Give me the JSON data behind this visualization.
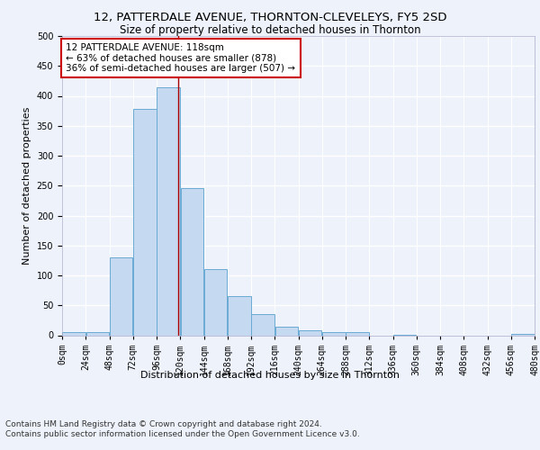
{
  "title1": "12, PATTERDALE AVENUE, THORNTON-CLEVELEYS, FY5 2SD",
  "title2": "Size of property relative to detached houses in Thornton",
  "xlabel": "Distribution of detached houses by size in Thornton",
  "ylabel": "Number of detached properties",
  "bin_edges": [
    0,
    24,
    48,
    72,
    96,
    120,
    144,
    168,
    192,
    216,
    240,
    264,
    288,
    312,
    336,
    360,
    384,
    408,
    432,
    456,
    480
  ],
  "bar_heights": [
    5,
    6,
    130,
    378,
    415,
    246,
    111,
    65,
    35,
    15,
    9,
    5,
    6,
    0,
    1,
    0,
    0,
    0,
    0,
    3
  ],
  "bar_color": "#c5d9f0",
  "bar_edge_color": "#6aaad4",
  "property_size": 118,
  "vline_color": "#aa0000",
  "annotation_text": "12 PATTERDALE AVENUE: 118sqm\n← 63% of detached houses are smaller (878)\n36% of semi-detached houses are larger (507) →",
  "annotation_box_color": "#ffffff",
  "annotation_box_edge_color": "#cc0000",
  "ylim": [
    0,
    500
  ],
  "yticks": [
    0,
    50,
    100,
    150,
    200,
    250,
    300,
    350,
    400,
    450,
    500
  ],
  "footer_text": "Contains HM Land Registry data © Crown copyright and database right 2024.\nContains public sector information licensed under the Open Government Licence v3.0.",
  "background_color": "#eef2fa",
  "plot_bg_color": "#eef2fa",
  "grid_color": "#ffffff",
  "title1_fontsize": 9.5,
  "title2_fontsize": 8.5,
  "xlabel_fontsize": 8,
  "ylabel_fontsize": 8,
  "tick_fontsize": 7,
  "footer_fontsize": 6.5,
  "ann_fontsize": 7.5
}
